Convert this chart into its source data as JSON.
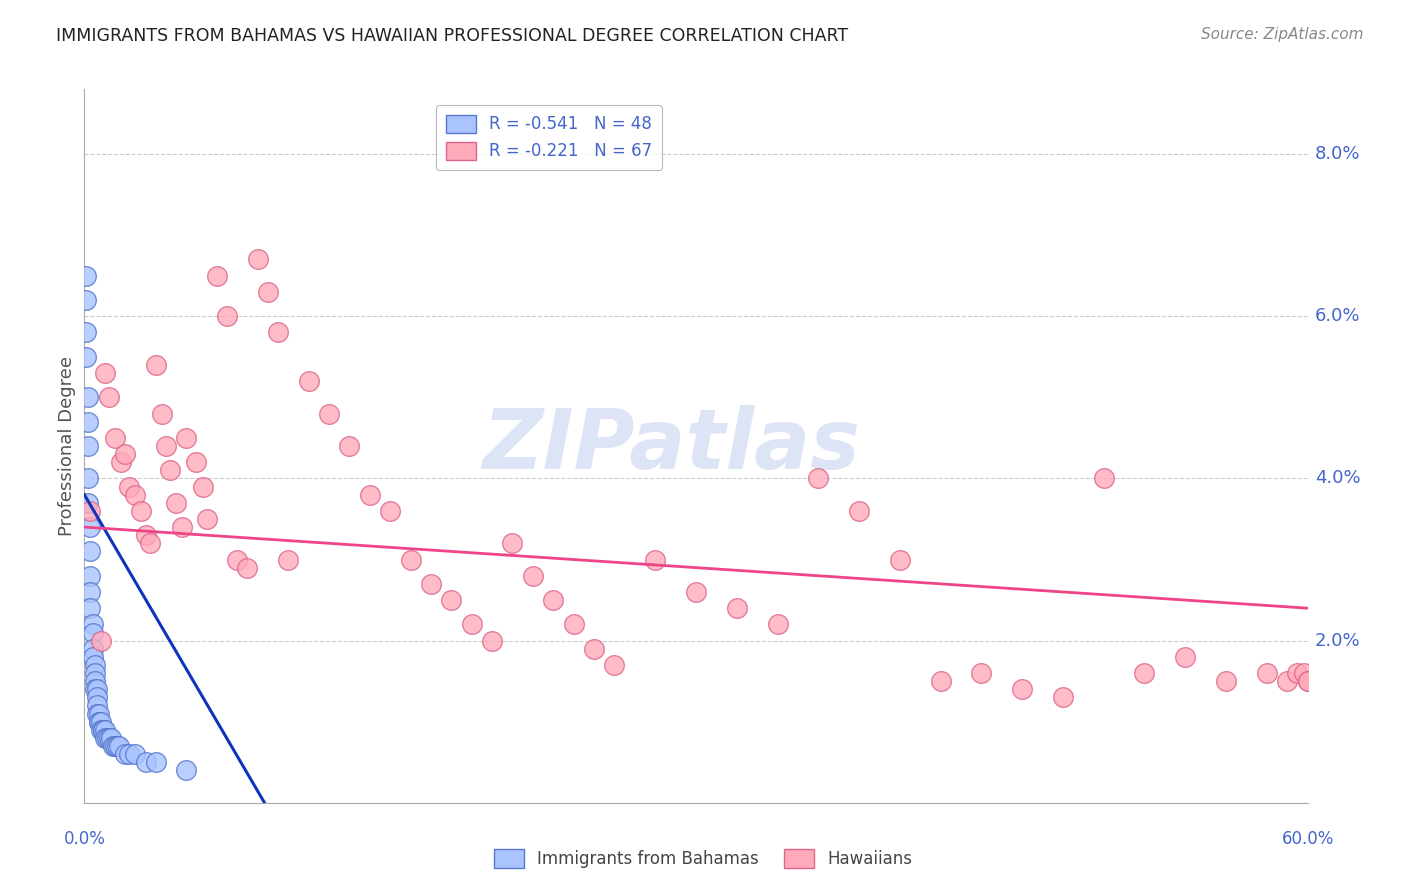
{
  "title": "IMMIGRANTS FROM BAHAMAS VS HAWAIIAN PROFESSIONAL DEGREE CORRELATION CHART",
  "source": "Source: ZipAtlas.com",
  "ylabel": "Professional Degree",
  "right_ytick_vals": [
    0.08,
    0.06,
    0.04,
    0.02
  ],
  "right_ytick_labels": [
    "8.0%",
    "6.0%",
    "4.0%",
    "2.0%"
  ],
  "legend_top": [
    {
      "label": "R = -0.541   N = 48",
      "color": "#aabbff",
      "edge": "#7799ee"
    },
    {
      "label": "R = -0.221   N = 67",
      "color": "#ffaabb",
      "edge": "#ee7799"
    }
  ],
  "legend_labels_bottom": [
    "Immigrants from Bahamas",
    "Hawaiians"
  ],
  "xlim": [
    0.0,
    0.6
  ],
  "ylim": [
    0.0,
    0.088
  ],
  "background_color": "#ffffff",
  "watermark": "ZIPatlas",
  "blue_scatter_x": [
    0.001,
    0.001,
    0.001,
    0.001,
    0.002,
    0.002,
    0.002,
    0.002,
    0.002,
    0.003,
    0.003,
    0.003,
    0.003,
    0.003,
    0.004,
    0.004,
    0.004,
    0.004,
    0.005,
    0.005,
    0.005,
    0.005,
    0.006,
    0.006,
    0.006,
    0.006,
    0.007,
    0.007,
    0.007,
    0.008,
    0.008,
    0.009,
    0.009,
    0.01,
    0.01,
    0.011,
    0.012,
    0.013,
    0.014,
    0.015,
    0.016,
    0.017,
    0.02,
    0.022,
    0.025,
    0.03,
    0.035,
    0.05
  ],
  "blue_scatter_y": [
    0.065,
    0.062,
    0.058,
    0.055,
    0.05,
    0.047,
    0.044,
    0.04,
    0.037,
    0.034,
    0.031,
    0.028,
    0.026,
    0.024,
    0.022,
    0.021,
    0.019,
    0.018,
    0.017,
    0.016,
    0.015,
    0.014,
    0.014,
    0.013,
    0.012,
    0.011,
    0.011,
    0.01,
    0.01,
    0.01,
    0.009,
    0.009,
    0.009,
    0.009,
    0.008,
    0.008,
    0.008,
    0.008,
    0.007,
    0.007,
    0.007,
    0.007,
    0.006,
    0.006,
    0.006,
    0.005,
    0.005,
    0.004
  ],
  "pink_scatter_x": [
    0.003,
    0.008,
    0.01,
    0.012,
    0.015,
    0.018,
    0.02,
    0.022,
    0.025,
    0.028,
    0.03,
    0.032,
    0.035,
    0.038,
    0.04,
    0.042,
    0.045,
    0.048,
    0.05,
    0.055,
    0.058,
    0.06,
    0.065,
    0.07,
    0.075,
    0.08,
    0.085,
    0.09,
    0.095,
    0.1,
    0.11,
    0.12,
    0.13,
    0.14,
    0.15,
    0.16,
    0.17,
    0.18,
    0.19,
    0.2,
    0.21,
    0.22,
    0.23,
    0.24,
    0.25,
    0.26,
    0.28,
    0.3,
    0.32,
    0.34,
    0.36,
    0.38,
    0.4,
    0.42,
    0.44,
    0.46,
    0.48,
    0.5,
    0.52,
    0.54,
    0.56,
    0.58,
    0.59,
    0.595,
    0.598,
    0.6,
    0.6
  ],
  "pink_scatter_y": [
    0.036,
    0.02,
    0.053,
    0.05,
    0.045,
    0.042,
    0.043,
    0.039,
    0.038,
    0.036,
    0.033,
    0.032,
    0.054,
    0.048,
    0.044,
    0.041,
    0.037,
    0.034,
    0.045,
    0.042,
    0.039,
    0.035,
    0.065,
    0.06,
    0.03,
    0.029,
    0.067,
    0.063,
    0.058,
    0.03,
    0.052,
    0.048,
    0.044,
    0.038,
    0.036,
    0.03,
    0.027,
    0.025,
    0.022,
    0.02,
    0.032,
    0.028,
    0.025,
    0.022,
    0.019,
    0.017,
    0.03,
    0.026,
    0.024,
    0.022,
    0.04,
    0.036,
    0.03,
    0.015,
    0.016,
    0.014,
    0.013,
    0.04,
    0.016,
    0.018,
    0.015,
    0.016,
    0.015,
    0.016,
    0.016,
    0.015,
    0.015
  ],
  "blue_line_x": [
    0.0,
    0.1
  ],
  "blue_line_y": [
    0.038,
    -0.005
  ],
  "pink_line_x": [
    0.0,
    0.6
  ],
  "pink_line_y": [
    0.034,
    0.024
  ],
  "grid_color": "#cccccc",
  "title_color": "#222222",
  "axis_color": "#4466cc",
  "scatter_blue_fc": "#aac4ff",
  "scatter_blue_ec": "#5577cc",
  "scatter_pink_fc": "#ffaabb",
  "scatter_pink_ec": "#dd6688",
  "blue_line_color": "#1133bb",
  "pink_line_color": "#ee4488"
}
